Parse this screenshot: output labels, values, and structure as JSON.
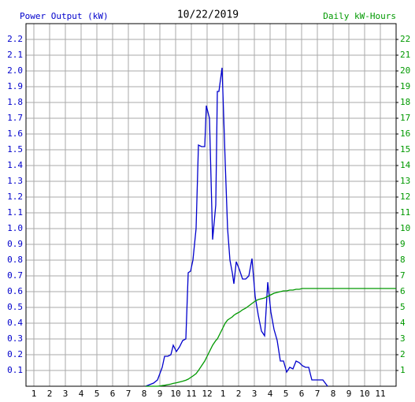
{
  "chart_data": {
    "type": "line",
    "title": "10/22/2019",
    "y_label": "Power Output (kW)",
    "y2_label": "Daily kW-Hours",
    "x": [
      8.1,
      8.35,
      8.6,
      8.85,
      9.0,
      9.15,
      9.3,
      9.5,
      9.7,
      9.85,
      10.05,
      10.25,
      10.45,
      10.65,
      10.8,
      10.95,
      11.1,
      11.3,
      11.45,
      11.65,
      11.85,
      11.95,
      12.15,
      12.35,
      12.55,
      12.65,
      12.75,
      12.95,
      13.15,
      13.3,
      13.45,
      13.6,
      13.7,
      13.85,
      14.05,
      14.25,
      14.45,
      14.65,
      14.85,
      15.05,
      15.25,
      15.45,
      15.65,
      15.85,
      16.05,
      16.25,
      16.45,
      16.65,
      16.85,
      17.05,
      17.25,
      17.45,
      17.65,
      17.85,
      18.05,
      18.25,
      18.45,
      18.65,
      18.85,
      19.35,
      19.65,
      24
    ],
    "series": [
      {
        "name": "Power Output (kW)",
        "color": "#0000cc",
        "axis": "y",
        "values": [
          0,
          0.01,
          0.02,
          0.04,
          0.08,
          0.12,
          0.19,
          0.19,
          0.2,
          0.26,
          0.22,
          0.25,
          0.29,
          0.3,
          0.72,
          0.73,
          0.8,
          1.0,
          1.53,
          1.52,
          1.52,
          1.78,
          1.7,
          0.93,
          1.15,
          1.87,
          1.87,
          2.02,
          1.42,
          1.0,
          0.8,
          0.72,
          0.65,
          0.79,
          0.74,
          0.68,
          0.68,
          0.7,
          0.81,
          0.57,
          0.45,
          0.35,
          0.32,
          0.66,
          0.47,
          0.36,
          0.29,
          0.16,
          0.16,
          0.09,
          0.12,
          0.11,
          0.16,
          0.15,
          0.13,
          0.12,
          0.12,
          0.04,
          0.04,
          0.04,
          0,
          null
        ]
      },
      {
        "name": "Daily kW-Hours",
        "color": "#009900",
        "axis": "y2",
        "values": [
          0,
          0,
          0,
          0,
          0.02,
          0.04,
          0.06,
          0.1,
          0.14,
          0.18,
          0.22,
          0.27,
          0.32,
          0.38,
          0.45,
          0.55,
          0.65,
          0.8,
          1.0,
          1.3,
          1.6,
          1.8,
          2.2,
          2.6,
          2.9,
          3.0,
          3.2,
          3.6,
          4.0,
          4.2,
          4.3,
          4.4,
          4.5,
          4.6,
          4.7,
          4.85,
          4.95,
          5.1,
          5.25,
          5.4,
          5.5,
          5.55,
          5.6,
          5.7,
          5.8,
          5.9,
          5.95,
          6.0,
          6.05,
          6.05,
          6.1,
          6.1,
          6.15,
          6.15,
          6.2,
          6.2,
          6.2,
          6.2,
          6.2,
          6.2,
          6.2,
          6.2
        ]
      }
    ],
    "xlim": [
      0.5,
      24
    ],
    "xticks": [
      {
        "value": 1,
        "label": "1"
      },
      {
        "value": 2,
        "label": "2"
      },
      {
        "value": 3,
        "label": "3"
      },
      {
        "value": 4,
        "label": "4"
      },
      {
        "value": 5,
        "label": "5"
      },
      {
        "value": 6,
        "label": "6"
      },
      {
        "value": 7,
        "label": "7"
      },
      {
        "value": 8,
        "label": "8"
      },
      {
        "value": 9,
        "label": "9"
      },
      {
        "value": 10,
        "label": "10"
      },
      {
        "value": 11,
        "label": "11"
      },
      {
        "value": 12,
        "label": "12"
      },
      {
        "value": 13,
        "label": "1"
      },
      {
        "value": 14,
        "label": "2"
      },
      {
        "value": 15,
        "label": "3"
      },
      {
        "value": 16,
        "label": "4"
      },
      {
        "value": 17,
        "label": "5"
      },
      {
        "value": 18,
        "label": "6"
      },
      {
        "value": 19,
        "label": "7"
      },
      {
        "value": 20,
        "label": "8"
      },
      {
        "value": 21,
        "label": "9"
      },
      {
        "value": 22,
        "label": "10"
      },
      {
        "value": 23,
        "label": "11"
      }
    ],
    "ylim": [
      0,
      2.3
    ],
    "yticks": [
      0.1,
      0.2,
      0.3,
      0.4,
      0.5,
      0.6,
      0.7,
      0.8,
      0.9,
      {
        "value": 1,
        "label": "1.0"
      },
      1.1,
      1.2,
      1.3,
      1.4,
      1.5,
      1.6,
      1.7,
      1.8,
      1.9,
      {
        "value": 2,
        "label": "2.0"
      },
      2.1,
      2.2
    ],
    "y2lim": [
      0,
      23
    ],
    "y2ticks": [
      1,
      2,
      3,
      4,
      5,
      6,
      7,
      8,
      9,
      10,
      11,
      12,
      13,
      14,
      15,
      16,
      17,
      18,
      19,
      20,
      21,
      22
    ],
    "grid": true
  }
}
